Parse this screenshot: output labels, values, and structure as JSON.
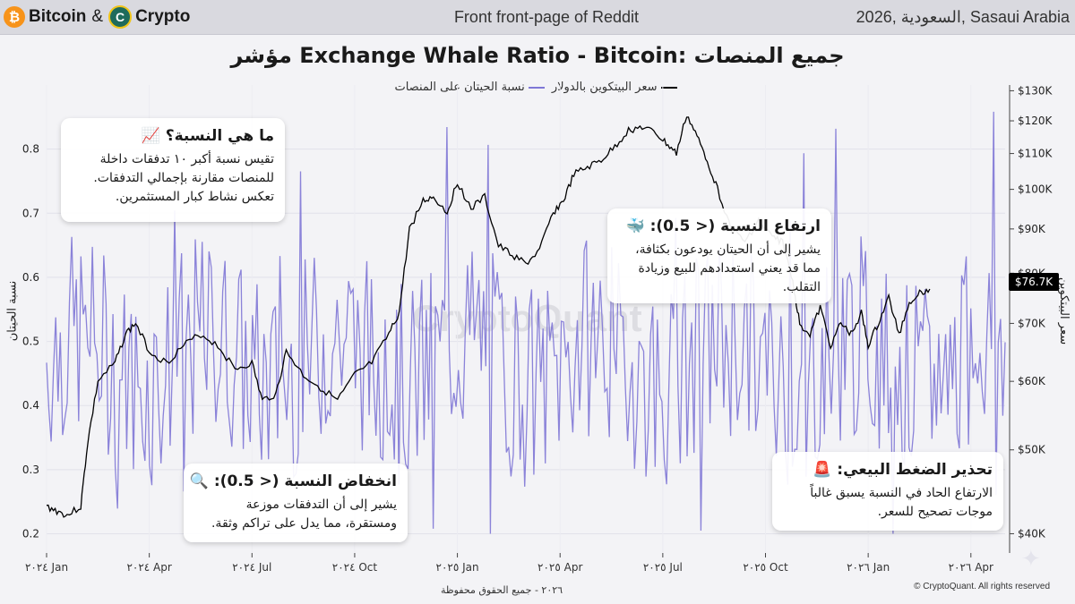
{
  "header": {
    "brand_left": "Bitcoin",
    "brand_amp": "&",
    "brand_right": "Crypto",
    "subtitle": "Front front-page of Reddit",
    "location": "2026, السعودية, Sasaui Arabia"
  },
  "title": "مؤشر Exchange Whale Ratio - Bitcoin: جميع المنصات",
  "legend": {
    "price": "سعر البيتكوين بالدولار",
    "ratio": "نسبة الحيتان على المنصات"
  },
  "watermark": "CryptoQuant",
  "price_tag": "$76.7K",
  "footer_left": "٢٠٢٦ - جميع الحقوق محفوظة",
  "footer_right": "© CryptoQuant. All rights reserved",
  "cards": {
    "what": {
      "title": "ما هي النسبة؟",
      "emoji": "📈",
      "body": "تقيس نسبة أكبر ١٠ تدفقات داخلة للمنصات مقارنة بإجمالي التدفقات. تعكس نشاط كبار المستثمرين."
    },
    "high": {
      "title": "ارتفاع النسبة (< 0.5):",
      "emoji": "🐳",
      "body": "يشير إلى أن الحيتان يودعون بكثافة، مما قد يعني استعدادهم للبيع وزيادة التقلب."
    },
    "low": {
      "title": "انخفاض النسبة (< 0.5):",
      "emoji": "🔍",
      "body": "يشير إلى أن التدفقات موزعة ومستقرة، مما يدل على تراكم وثقة."
    },
    "warn": {
      "title": "تحذير الضغط البيعي:",
      "emoji": "🚨",
      "body": "الارتفاع الحاد في النسبة يسبق غالباً موجات تصحيح للسعر."
    }
  },
  "chart_data": {
    "type": "line",
    "ylabel_left": "نسبة الحيتان",
    "ylabel_right": "سعر البيتكوين",
    "ylim_left": [
      0.17,
      0.9
    ],
    "ylim_right_log": [
      38000,
      132000
    ],
    "left_ticks": [
      "0.2",
      "0.3",
      "0.4",
      "0.5",
      "0.6",
      "0.7",
      "0.8"
    ],
    "left_tick_values": [
      0.2,
      0.3,
      0.4,
      0.5,
      0.6,
      0.7,
      0.8
    ],
    "right_ticks": [
      "$40K",
      "$50K",
      "$60K",
      "$70K",
      "$80K",
      "$90K",
      "$100K",
      "$110K",
      "$120K",
      "$130K"
    ],
    "right_tick_values": [
      40000,
      50000,
      60000,
      70000,
      80000,
      90000,
      100000,
      110000,
      120000,
      130000
    ],
    "x_ticks": [
      "٢٠٢٤ Jan",
      "٢٠٢٤ Apr",
      "٢٠٢٤ Jul",
      "٢٠٢٤ Oct",
      "٢٠٢٥ Jan",
      "٢٠٢٥ Apr",
      "٢٠٢٥ Jul",
      "٢٠٢٥ Oct",
      "٢٠٢٦ Jan",
      "٢٠٢٦ Apr"
    ],
    "x_range": [
      "2024-01",
      "2026-05"
    ],
    "series": [
      {
        "name": "سعر البيتكوين بالدولار",
        "color": "#000000",
        "points": [
          [
            0,
            43000
          ],
          [
            0.3,
            42500
          ],
          [
            0.6,
            42000
          ],
          [
            1,
            43000
          ],
          [
            1.2,
            51000
          ],
          [
            1.5,
            60000
          ],
          [
            2,
            63000
          ],
          [
            2.3,
            68000
          ],
          [
            2.6,
            70000
          ],
          [
            3,
            65000
          ],
          [
            3.5,
            63000
          ],
          [
            4,
            66000
          ],
          [
            4.5,
            68000
          ],
          [
            5,
            66000
          ],
          [
            5.5,
            62000
          ],
          [
            6,
            63000
          ],
          [
            6.3,
            57000
          ],
          [
            6.7,
            58000
          ],
          [
            7,
            65000
          ],
          [
            7.5,
            61000
          ],
          [
            8,
            59000
          ],
          [
            8.5,
            57000
          ],
          [
            9,
            61000
          ],
          [
            9.5,
            63000
          ],
          [
            10,
            68000
          ],
          [
            10.3,
            72000
          ],
          [
            10.6,
            90000
          ],
          [
            11,
            97000
          ],
          [
            11.3,
            98000
          ],
          [
            11.7,
            94000
          ],
          [
            12,
            102000
          ],
          [
            12.4,
            95000
          ],
          [
            12.8,
            98000
          ],
          [
            13.2,
            86000
          ],
          [
            13.6,
            84000
          ],
          [
            14,
            82000
          ],
          [
            14.4,
            85000
          ],
          [
            14.8,
            94000
          ],
          [
            15.1,
            97000
          ],
          [
            15.4,
            104000
          ],
          [
            15.8,
            106000
          ],
          [
            16.2,
            108000
          ],
          [
            16.6,
            112000
          ],
          [
            17,
            117000
          ],
          [
            17.4,
            118000
          ],
          [
            17.8,
            116000
          ],
          [
            18.1,
            113000
          ],
          [
            18.4,
            110000
          ],
          [
            18.7,
            122000
          ],
          [
            19,
            115000
          ],
          [
            19.3,
            108000
          ],
          [
            19.6,
            100000
          ],
          [
            20,
            90000
          ],
          [
            20.4,
            87000
          ],
          [
            20.8,
            92000
          ],
          [
            21.2,
            88000
          ],
          [
            21.5,
            87000
          ],
          [
            21.8,
            78000
          ],
          [
            22,
            70000
          ],
          [
            22.3,
            68000
          ],
          [
            22.6,
            73000
          ],
          [
            22.9,
            66000
          ],
          [
            23.2,
            70000
          ],
          [
            23.5,
            68000
          ],
          [
            23.8,
            72000
          ],
          [
            24,
            66000
          ],
          [
            24.3,
            70000
          ],
          [
            24.6,
            75000
          ],
          [
            24.9,
            68000
          ],
          [
            25.2,
            74000
          ],
          [
            25.5,
            76000
          ],
          [
            25.8,
            76700
          ]
        ]
      },
      {
        "name": "نسبة الحيتان على المنصات",
        "color": "#7f77d6",
        "seed_range": [
          0.3,
          0.68
        ]
      }
    ],
    "x_domain_months": [
      0,
      28
    ]
  }
}
